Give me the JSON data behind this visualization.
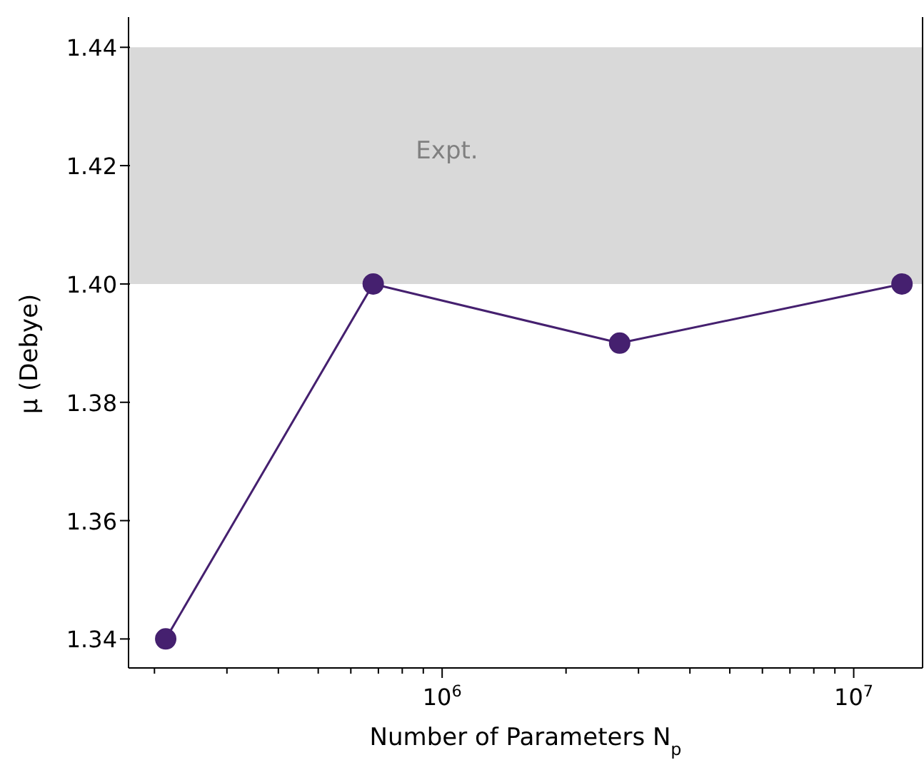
{
  "chart_data": {
    "type": "line",
    "xlabel": "Number of Parameters N$_{p}$",
    "ylabel": "μ (Debye)",
    "log": "x",
    "marker": "circle",
    "line_style": "solid",
    "x": [
      213000,
      680000,
      2700000,
      13100000
    ],
    "series": [
      {
        "color": "#45206f",
        "values": [
          1.34,
          1.4,
          1.39,
          1.4
        ]
      }
    ],
    "xlim": [
      173000,
      14700000
    ],
    "xticks": [
      {
        "value": 200000,
        "label": null
      },
      {
        "value": 300000,
        "label": null
      },
      {
        "value": 400000,
        "label": null
      },
      {
        "value": 500000,
        "label": null
      },
      {
        "value": 600000,
        "label": null
      },
      {
        "value": 700000,
        "label": null
      },
      {
        "value": 800000,
        "label": null
      },
      {
        "value": 900000,
        "label": null
      },
      {
        "value": 1000000,
        "label": "10$^{6}$"
      },
      {
        "value": 2000000,
        "label": null
      },
      {
        "value": 3000000,
        "label": null
      },
      {
        "value": 4000000,
        "label": null
      },
      {
        "value": 5000000,
        "label": null
      },
      {
        "value": 6000000,
        "label": null
      },
      {
        "value": 7000000,
        "label": null
      },
      {
        "value": 8000000,
        "label": null
      },
      {
        "value": 9000000,
        "label": null
      },
      {
        "value": 10000000,
        "label": "10$^{7}$"
      }
    ],
    "ylim": [
      1.3351,
      1.4451
    ],
    "yticks": [
      1.34,
      1.36,
      1.38,
      {
        "value": 1.4,
        "label": "1.40"
      },
      1.42,
      1.44
    ],
    "bands": [
      {
        "axis": "y",
        "from": 1.4,
        "to": 1.44,
        "label": "Expt.",
        "color": "#d9d9d9"
      }
    ]
  }
}
